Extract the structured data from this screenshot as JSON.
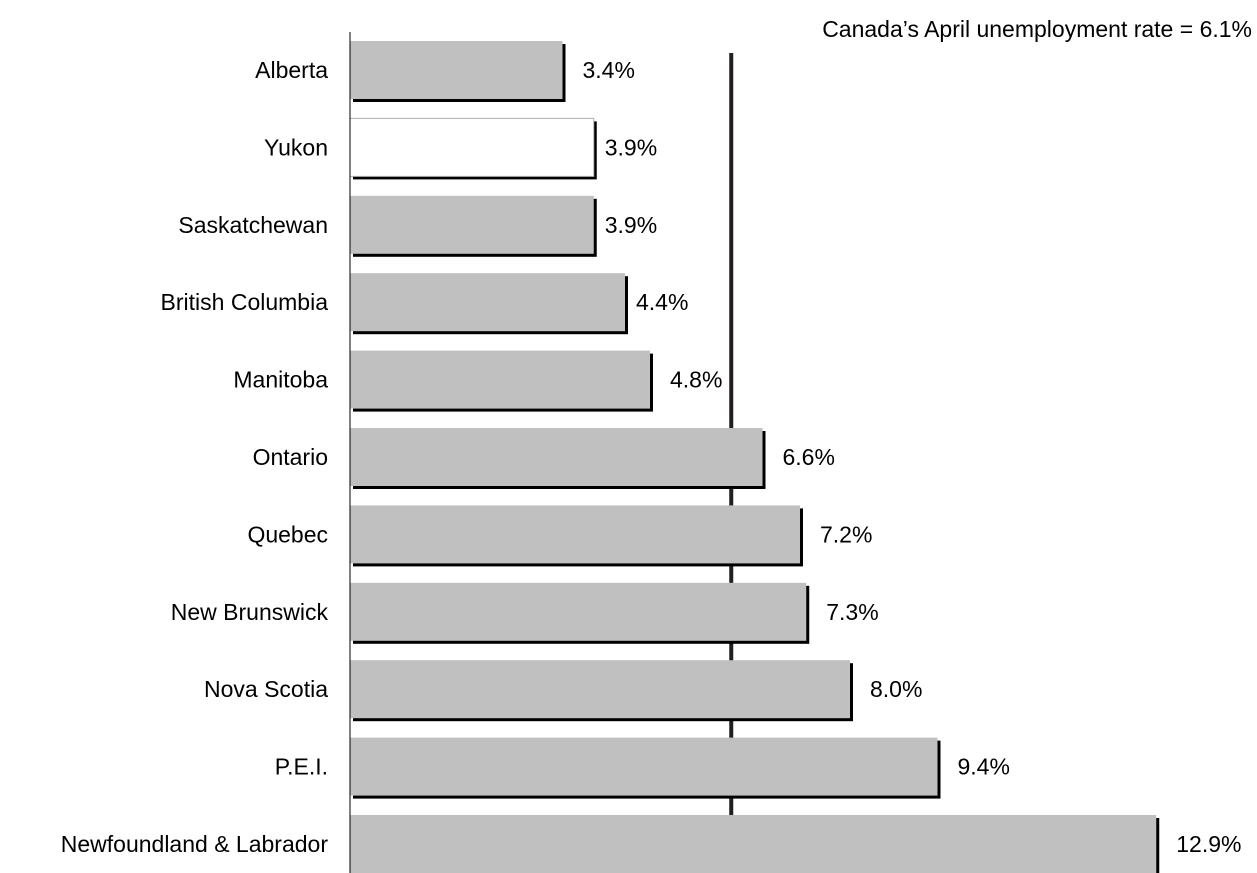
{
  "chart_data": {
    "type": "bar",
    "orientation": "horizontal",
    "annotation": "Canada’s April unemployment rate = 6.1%",
    "reference_value": 6.1,
    "xlim": [
      0,
      13.0
    ],
    "categories": [
      "Alberta",
      "Yukon",
      "Saskatchewan",
      "British Columbia",
      "Manitoba",
      "Ontario",
      "Quebec",
      "New Brunswick",
      "Nova Scotia",
      "P.E.I.",
      "Newfoundland & Labrador"
    ],
    "values": [
      3.4,
      3.9,
      3.9,
      4.4,
      4.8,
      6.6,
      7.2,
      7.3,
      8.0,
      9.4,
      12.9
    ],
    "value_labels": [
      "3.4%",
      "3.9%",
      "3.9%",
      "4.4%",
      "4.8%",
      "6.6%",
      "7.2%",
      "7.3%",
      "8.0%",
      "9.4%",
      "12.9%"
    ],
    "bar_fills": [
      "#c0c0c0",
      "#ffffff",
      "#c0c0c0",
      "#c0c0c0",
      "#c0c0c0",
      "#c0c0c0",
      "#c0c0c0",
      "#c0c0c0",
      "#c0c0c0",
      "#c0c0c0",
      "#c0c0c0"
    ],
    "colors": {
      "bar": "#c0c0c0",
      "highlight_bar": "#ffffff",
      "shadow": "#000000",
      "reference_line": "#231f20",
      "axis": "#000000"
    },
    "grid": false,
    "legend": "none"
  }
}
